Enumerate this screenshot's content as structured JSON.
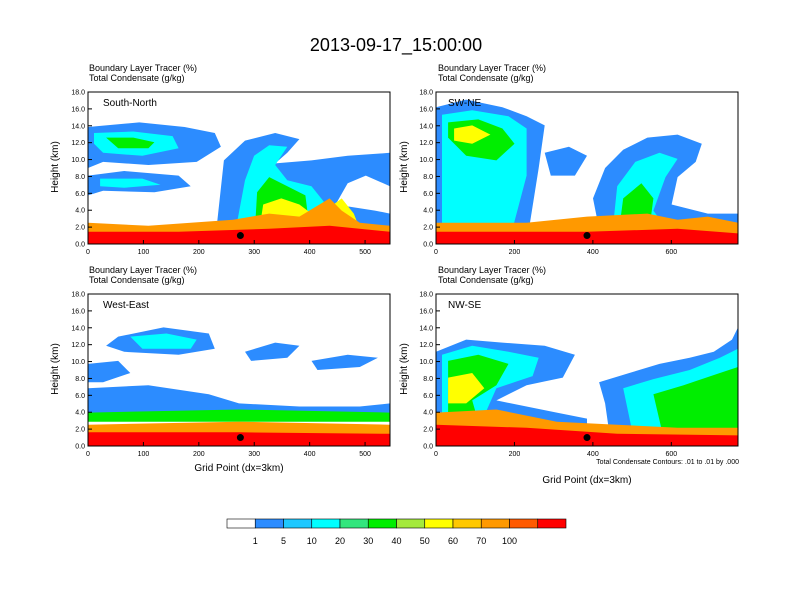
{
  "figure": {
    "title": "2013-09-17_15:00:00",
    "colorbar": {
      "ticks": [
        "1",
        "5",
        "10",
        "20",
        "30",
        "40",
        "50",
        "60",
        "70",
        "100"
      ],
      "colors": [
        "#ffffff",
        "#2c8cff",
        "#1ec8ff",
        "#00ffff",
        "#32e67d",
        "#00ee00",
        "#a4ea3c",
        "#ffff00",
        "#ffc800",
        "#ff9900",
        "#ff5a00",
        "#ff0000"
      ]
    },
    "contour_note": "Total Condensate Contours: .01 to .01 by .000"
  },
  "chart_data": [
    {
      "type": "heatmap",
      "panel": "South-North",
      "line1": "Boundary Layer Tracer   (%)",
      "line2": "Total Condensate   (g/kg)",
      "ylabel": "Height (km)",
      "xlabel": "",
      "xlim": [
        0,
        545
      ],
      "ylim": [
        0,
        18
      ],
      "xticks": [
        0,
        100,
        200,
        300,
        400,
        500
      ],
      "yticks": [
        "0.0",
        "2.0",
        "4.0",
        "6.0",
        "8.0",
        "10.0",
        "12.0",
        "14.0",
        "16.0",
        "18.0"
      ],
      "marker": [
        275,
        1.0
      ]
    },
    {
      "type": "heatmap",
      "panel": "SW-NE",
      "line1": "Boundary Layer Tracer   (%)",
      "line2": "Total Condensate   (g/kg)",
      "ylabel": "Height (km)",
      "xlabel": "",
      "xlim": [
        0,
        770
      ],
      "ylim": [
        0,
        18
      ],
      "xticks": [
        0,
        200,
        400,
        600
      ],
      "yticks": [
        "0.0",
        "2.0",
        "4.0",
        "6.0",
        "8.0",
        "10.0",
        "12.0",
        "14.0",
        "16.0",
        "18.0"
      ],
      "marker": [
        385,
        1.0
      ]
    },
    {
      "type": "heatmap",
      "panel": "West-East",
      "line1": "Boundary Layer Tracer   (%)",
      "line2": "Total Condensate   (g/kg)",
      "ylabel": "Height (km)",
      "xlabel": "Grid Point (dx=3km)",
      "xlim": [
        0,
        545
      ],
      "ylim": [
        0,
        18
      ],
      "xticks": [
        0,
        100,
        200,
        300,
        400,
        500
      ],
      "yticks": [
        "0.0",
        "2.0",
        "4.0",
        "6.0",
        "8.0",
        "10.0",
        "12.0",
        "14.0",
        "16.0",
        "18.0"
      ],
      "marker": [
        275,
        1.0
      ]
    },
    {
      "type": "heatmap",
      "panel": "NW-SE",
      "line1": "Boundary Layer Tracer   (%)",
      "line2": "Total Condensate   (g/kg)",
      "ylabel": "Height (km)",
      "xlabel": "Grid Point (dx=3km)",
      "xlim": [
        0,
        770
      ],
      "ylim": [
        0,
        18
      ],
      "xticks": [
        0,
        200,
        400,
        600
      ],
      "yticks": [
        "0.0",
        "2.0",
        "4.0",
        "6.0",
        "8.0",
        "10.0",
        "12.0",
        "14.0",
        "16.0",
        "18.0"
      ],
      "marker": [
        385,
        1.0
      ]
    }
  ]
}
